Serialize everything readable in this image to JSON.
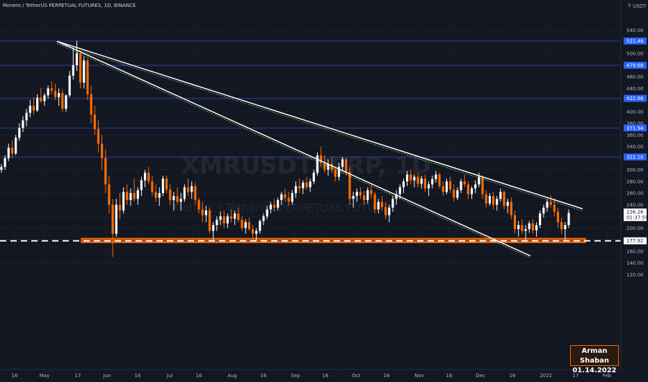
{
  "header": {
    "symbol_line": "Monero / TetherUS PERPETUAL FUTURES, 1D, BINANCE"
  },
  "watermark": {
    "big": "XMRUSDTPERP, 1D",
    "small": "Monero / TetherUS PERPETUAL FUTURES"
  },
  "signature": {
    "name": "Arman Shaban",
    "date": "01.14.2022"
  },
  "colors": {
    "background": "#131722",
    "up": "#ffffff",
    "down": "#ff6d00",
    "level_line": "#2962ff",
    "trendline": "#ffffff",
    "support_zone": "#ff6d00"
  },
  "chart_data": {
    "type": "candlestick",
    "title": "Monero / TetherUS PERPETUAL FUTURES, 1D, BINANCE",
    "currency": "USDT",
    "ylim": [
      110,
      550
    ],
    "y_ticks": [
      120,
      140,
      160,
      180,
      200,
      220,
      240,
      260,
      280,
      300,
      320,
      340,
      360,
      380,
      400,
      420,
      440,
      460,
      480,
      500,
      520,
      540
    ],
    "x_ticks": [
      "16",
      "May",
      "17",
      "Jun",
      "16",
      "Jul",
      "16",
      "Aug",
      "16",
      "Sep",
      "16",
      "Oct",
      "16",
      "Nov",
      "16",
      "Dec",
      "16",
      "2022",
      "17",
      "Feb"
    ],
    "axis_unit_label": "USDT",
    "scale_marker": "5",
    "price_levels": [
      {
        "value": 521.48,
        "label": "521.48"
      },
      {
        "value": 479.68,
        "label": "479.68"
      },
      {
        "value": 422.86,
        "label": "422.86"
      },
      {
        "value": 371.94,
        "label": "371.94"
      },
      {
        "value": 322.1,
        "label": "322.10"
      }
    ],
    "current_price": {
      "value": 226.26,
      "label": "226.26",
      "countdown": "01:37:59"
    },
    "support": {
      "value": 177.92,
      "label": "177.92",
      "zone": [
        175,
        182
      ]
    },
    "trendlines": [
      {
        "from": {
          "x": "2021-05-10",
          "y": 521
        },
        "to": {
          "x": "2022-01-20",
          "y": 233
        }
      },
      {
        "from": {
          "x": "2021-05-10",
          "y": 521
        },
        "to": {
          "x": "2022-01-03",
          "y": 152
        }
      }
    ],
    "candles_ohlc": [
      [
        300,
        310,
        295,
        305
      ],
      [
        305,
        325,
        300,
        320
      ],
      [
        320,
        345,
        315,
        338
      ],
      [
        338,
        350,
        320,
        328
      ],
      [
        328,
        360,
        325,
        355
      ],
      [
        355,
        380,
        350,
        372
      ],
      [
        372,
        392,
        365,
        385
      ],
      [
        385,
        405,
        375,
        398
      ],
      [
        398,
        420,
        390,
        410
      ],
      [
        410,
        425,
        395,
        402
      ],
      [
        402,
        430,
        400,
        424
      ],
      [
        424,
        440,
        415,
        418
      ],
      [
        418,
        432,
        410,
        428
      ],
      [
        428,
        445,
        422,
        440
      ],
      [
        440,
        452,
        430,
        436
      ],
      [
        436,
        448,
        420,
        425
      ],
      [
        425,
        440,
        410,
        432
      ],
      [
        432,
        438,
        400,
        405
      ],
      [
        405,
        430,
        400,
        428
      ],
      [
        428,
        470,
        425,
        462
      ],
      [
        462,
        510,
        455,
        480
      ],
      [
        480,
        522,
        470,
        500
      ],
      [
        500,
        505,
        440,
        450
      ],
      [
        450,
        495,
        440,
        488
      ],
      [
        488,
        492,
        420,
        430
      ],
      [
        430,
        445,
        380,
        395
      ],
      [
        395,
        410,
        360,
        370
      ],
      [
        370,
        385,
        330,
        345
      ],
      [
        345,
        360,
        300,
        320
      ],
      [
        320,
        335,
        260,
        275
      ],
      [
        275,
        290,
        225,
        240
      ],
      [
        240,
        250,
        150,
        190
      ],
      [
        190,
        250,
        185,
        240
      ],
      [
        240,
        260,
        215,
        230
      ],
      [
        230,
        270,
        225,
        262
      ],
      [
        262,
        275,
        240,
        248
      ],
      [
        248,
        268,
        238,
        260
      ],
      [
        260,
        285,
        245,
        250
      ],
      [
        250,
        270,
        240,
        265
      ],
      [
        265,
        288,
        255,
        282
      ],
      [
        282,
        300,
        270,
        295
      ],
      [
        295,
        305,
        275,
        280
      ],
      [
        280,
        290,
        255,
        262
      ],
      [
        262,
        275,
        245,
        252
      ],
      [
        252,
        270,
        238,
        260
      ],
      [
        260,
        290,
        255,
        285
      ],
      [
        285,
        290,
        260,
        266
      ],
      [
        266,
        275,
        240,
        248
      ],
      [
        248,
        262,
        230,
        255
      ],
      [
        255,
        270,
        240,
        245
      ],
      [
        245,
        260,
        230,
        250
      ],
      [
        250,
        275,
        245,
        270
      ],
      [
        270,
        285,
        255,
        262
      ],
      [
        262,
        280,
        250,
        272
      ],
      [
        272,
        278,
        240,
        248
      ],
      [
        248,
        252,
        225,
        232
      ],
      [
        232,
        245,
        210,
        222
      ],
      [
        222,
        238,
        210,
        230
      ],
      [
        230,
        235,
        190,
        195
      ],
      [
        195,
        210,
        180,
        205
      ],
      [
        205,
        220,
        195,
        214
      ],
      [
        214,
        228,
        205,
        220
      ],
      [
        220,
        230,
        200,
        208
      ],
      [
        208,
        225,
        200,
        220
      ],
      [
        220,
        232,
        210,
        216
      ],
      [
        216,
        230,
        205,
        225
      ],
      [
        225,
        235,
        210,
        214
      ],
      [
        214,
        220,
        195,
        200
      ],
      [
        200,
        215,
        190,
        210
      ],
      [
        210,
        218,
        195,
        198
      ],
      [
        198,
        205,
        182,
        190
      ],
      [
        190,
        200,
        178,
        195
      ],
      [
        195,
        215,
        190,
        212
      ],
      [
        212,
        225,
        205,
        220
      ],
      [
        220,
        238,
        215,
        232
      ],
      [
        232,
        245,
        225,
        240
      ],
      [
        240,
        250,
        228,
        235
      ],
      [
        235,
        252,
        230,
        248
      ],
      [
        248,
        262,
        240,
        258
      ],
      [
        258,
        268,
        245,
        252
      ],
      [
        252,
        262,
        238,
        245
      ],
      [
        245,
        265,
        240,
        260
      ],
      [
        260,
        280,
        252,
        272
      ],
      [
        272,
        285,
        260,
        268
      ],
      [
        268,
        282,
        258,
        278
      ],
      [
        278,
        288,
        265,
        270
      ],
      [
        270,
        285,
        262,
        280
      ],
      [
        280,
        300,
        275,
        295
      ],
      [
        295,
        330,
        290,
        325
      ],
      [
        325,
        340,
        305,
        312
      ],
      [
        312,
        325,
        295,
        300
      ],
      [
        300,
        318,
        290,
        310
      ],
      [
        310,
        322,
        295,
        300
      ],
      [
        300,
        305,
        280,
        288
      ],
      [
        288,
        312,
        282,
        305
      ],
      [
        305,
        322,
        298,
        318
      ],
      [
        318,
        322,
        290,
        296
      ],
      [
        296,
        305,
        240,
        250
      ],
      [
        250,
        262,
        235,
        255
      ],
      [
        255,
        268,
        245,
        262
      ],
      [
        262,
        270,
        250,
        256
      ],
      [
        256,
        264,
        240,
        248
      ],
      [
        248,
        270,
        242,
        265
      ],
      [
        265,
        275,
        250,
        258
      ],
      [
        258,
        262,
        225,
        232
      ],
      [
        232,
        250,
        225,
        245
      ],
      [
        245,
        255,
        230,
        236
      ],
      [
        236,
        245,
        215,
        222
      ],
      [
        222,
        240,
        210,
        235
      ],
      [
        235,
        255,
        228,
        250
      ],
      [
        250,
        265,
        240,
        258
      ],
      [
        258,
        275,
        250,
        270
      ],
      [
        270,
        285,
        260,
        280
      ],
      [
        280,
        298,
        272,
        292
      ],
      [
        292,
        300,
        275,
        282
      ],
      [
        282,
        292,
        270,
        288
      ],
      [
        288,
        295,
        270,
        276
      ],
      [
        276,
        290,
        268,
        285
      ],
      [
        285,
        292,
        262,
        268
      ],
      [
        268,
        280,
        255,
        275
      ],
      [
        275,
        290,
        268,
        284
      ],
      [
        284,
        298,
        278,
        292
      ],
      [
        292,
        295,
        268,
        272
      ],
      [
        272,
        280,
        255,
        262
      ],
      [
        262,
        285,
        258,
        280
      ],
      [
        280,
        288,
        260,
        266
      ],
      [
        266,
        275,
        245,
        252
      ],
      [
        252,
        270,
        248,
        265
      ],
      [
        265,
        285,
        260,
        280
      ],
      [
        280,
        292,
        270,
        275
      ],
      [
        275,
        280,
        250,
        258
      ],
      [
        258,
        272,
        250,
        268
      ],
      [
        268,
        282,
        260,
        275
      ],
      [
        275,
        295,
        270,
        288
      ],
      [
        288,
        290,
        250,
        258
      ],
      [
        258,
        265,
        235,
        242
      ],
      [
        242,
        260,
        238,
        255
      ],
      [
        255,
        262,
        232,
        240
      ],
      [
        240,
        255,
        230,
        250
      ],
      [
        250,
        268,
        245,
        262
      ],
      [
        262,
        265,
        232,
        238
      ],
      [
        238,
        250,
        225,
        245
      ],
      [
        245,
        252,
        215,
        222
      ],
      [
        222,
        230,
        190,
        198
      ],
      [
        198,
        212,
        185,
        205
      ],
      [
        205,
        215,
        190,
        195
      ],
      [
        195,
        205,
        180,
        198
      ],
      [
        198,
        212,
        192,
        208
      ],
      [
        208,
        215,
        190,
        196
      ],
      [
        196,
        210,
        185,
        205
      ],
      [
        205,
        230,
        200,
        225
      ],
      [
        225,
        240,
        218,
        235
      ],
      [
        235,
        250,
        228,
        245
      ],
      [
        245,
        256,
        235,
        240
      ],
      [
        240,
        250,
        220,
        228
      ],
      [
        228,
        235,
        200,
        210
      ],
      [
        210,
        218,
        190,
        198
      ],
      [
        198,
        210,
        180,
        205
      ],
      [
        205,
        232,
        200,
        226
      ]
    ]
  }
}
